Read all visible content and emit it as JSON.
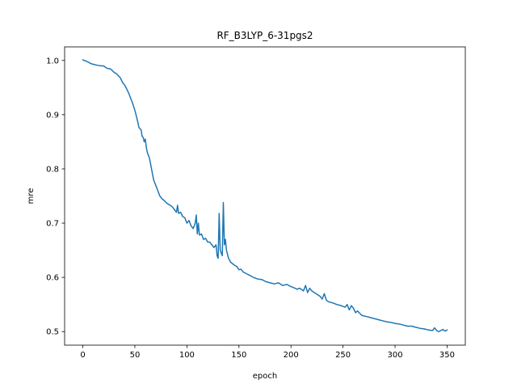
{
  "chart_data": {
    "type": "line",
    "title": "RF_B3LYP_6-31pgs2",
    "xlabel": "epoch",
    "ylabel": "mre",
    "xlim": [
      -17.5,
      367.5
    ],
    "ylim": [
      0.475,
      1.025
    ],
    "xticks": [
      0,
      50,
      100,
      150,
      200,
      250,
      300,
      350
    ],
    "yticks": [
      0.5,
      0.6,
      0.7,
      0.8,
      0.9,
      1.0
    ],
    "ytick_labels": [
      "0.5",
      "0.6",
      "0.7",
      "0.8",
      "0.9",
      "1.0"
    ],
    "grid": false,
    "series": [
      {
        "color": "#1f77b4",
        "x": [
          0,
          4,
          6,
          8,
          10,
          14,
          18,
          20,
          22,
          24,
          26,
          28,
          30,
          32,
          34,
          35,
          36,
          38,
          40,
          42,
          44,
          46,
          48,
          50,
          52,
          54,
          56,
          57,
          58,
          59,
          60,
          61,
          62,
          63,
          64,
          66,
          68,
          70,
          72,
          74,
          76,
          78,
          80,
          82,
          84,
          86,
          88,
          90,
          91,
          92,
          94,
          96,
          98,
          100,
          102,
          104,
          106,
          108,
          109,
          110,
          111,
          112,
          114,
          116,
          118,
          120,
          122,
          124,
          126,
          128,
          129,
          130,
          131,
          132,
          133,
          134,
          135,
          136,
          137,
          138,
          140,
          142,
          144,
          146,
          148,
          150,
          152,
          154,
          156,
          158,
          160,
          164,
          168,
          172,
          176,
          180,
          184,
          188,
          192,
          196,
          200,
          204,
          206,
          208,
          210,
          212,
          214,
          216,
          218,
          220,
          224,
          228,
          230,
          232,
          234,
          236,
          240,
          244,
          248,
          252,
          254,
          256,
          258,
          260,
          262,
          264,
          268,
          272,
          276,
          280,
          284,
          288,
          292,
          296,
          300,
          304,
          308,
          312,
          316,
          320,
          324,
          328,
          332,
          336,
          338,
          340,
          342,
          344,
          346,
          348,
          350
        ],
        "y": [
          1.001,
          0.998,
          0.996,
          0.994,
          0.993,
          0.991,
          0.99,
          0.99,
          0.987,
          0.985,
          0.985,
          0.982,
          0.978,
          0.976,
          0.972,
          0.97,
          0.968,
          0.96,
          0.955,
          0.948,
          0.94,
          0.93,
          0.92,
          0.908,
          0.893,
          0.876,
          0.872,
          0.86,
          0.858,
          0.85,
          0.855,
          0.84,
          0.83,
          0.825,
          0.82,
          0.8,
          0.78,
          0.77,
          0.76,
          0.75,
          0.745,
          0.742,
          0.738,
          0.735,
          0.733,
          0.73,
          0.725,
          0.72,
          0.733,
          0.718,
          0.72,
          0.712,
          0.71,
          0.7,
          0.705,
          0.695,
          0.69,
          0.7,
          0.715,
          0.68,
          0.7,
          0.678,
          0.68,
          0.67,
          0.672,
          0.665,
          0.665,
          0.66,
          0.655,
          0.66,
          0.64,
          0.635,
          0.718,
          0.65,
          0.645,
          0.64,
          0.738,
          0.66,
          0.67,
          0.65,
          0.635,
          0.628,
          0.625,
          0.622,
          0.62,
          0.614,
          0.615,
          0.61,
          0.608,
          0.606,
          0.604,
          0.6,
          0.597,
          0.596,
          0.592,
          0.59,
          0.588,
          0.59,
          0.585,
          0.587,
          0.583,
          0.58,
          0.578,
          0.58,
          0.578,
          0.575,
          0.585,
          0.572,
          0.58,
          0.575,
          0.57,
          0.565,
          0.56,
          0.57,
          0.558,
          0.555,
          0.553,
          0.55,
          0.548,
          0.545,
          0.55,
          0.54,
          0.548,
          0.543,
          0.535,
          0.538,
          0.53,
          0.528,
          0.526,
          0.524,
          0.522,
          0.52,
          0.518,
          0.517,
          0.515,
          0.514,
          0.512,
          0.51,
          0.51,
          0.508,
          0.506,
          0.505,
          0.503,
          0.502,
          0.507,
          0.502,
          0.5,
          0.502,
          0.504,
          0.501,
          0.503
        ]
      }
    ]
  }
}
